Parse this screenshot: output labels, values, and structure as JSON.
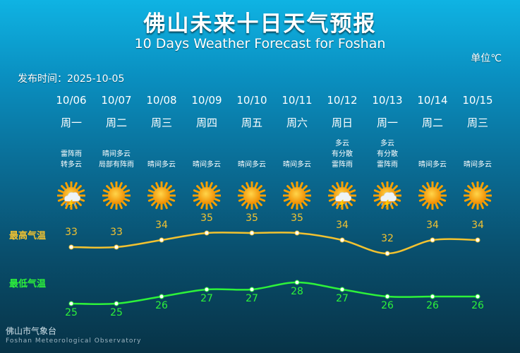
{
  "header": {
    "title": "佛山未来十日天气预报",
    "subtitle": "10 Days Weather Forecast for Foshan",
    "unit": "单位℃",
    "publish": "发布时间：2025-10-05"
  },
  "labels": {
    "high": "最高气温",
    "low": "最低气温"
  },
  "colors": {
    "high": "#f2c230",
    "low": "#2df23a"
  },
  "days": [
    {
      "date": "10/06",
      "weekday": "周一",
      "desc": [
        "雷阵雨",
        "转多云"
      ],
      "icon": "thunderstorm-sun-icon",
      "high": 33,
      "low": 25
    },
    {
      "date": "10/07",
      "weekday": "周二",
      "desc": [
        "晴间多云",
        "局部有阵雨"
      ],
      "icon": "sun-icon",
      "high": 33,
      "low": 25
    },
    {
      "date": "10/08",
      "weekday": "周三",
      "desc": [
        "晴间多云"
      ],
      "icon": "sun-icon",
      "high": 34,
      "low": 26
    },
    {
      "date": "10/09",
      "weekday": "周四",
      "desc": [
        "晴间多云"
      ],
      "icon": "sun-icon",
      "high": 35,
      "low": 27
    },
    {
      "date": "10/10",
      "weekday": "周五",
      "desc": [
        "晴间多云"
      ],
      "icon": "sun-icon",
      "high": 35,
      "low": 27
    },
    {
      "date": "10/11",
      "weekday": "周六",
      "desc": [
        "晴间多云"
      ],
      "icon": "sun-icon",
      "high": 35,
      "low": 28
    },
    {
      "date": "10/12",
      "weekday": "周日",
      "desc": [
        "多云",
        "有分散",
        "雷阵雨"
      ],
      "icon": "thunderstorm-sun-icon",
      "high": 34,
      "low": 27
    },
    {
      "date": "10/13",
      "weekday": "周一",
      "desc": [
        "多云",
        "有分散",
        "雷阵雨"
      ],
      "icon": "thunderstorm-sun-icon",
      "high": 32,
      "low": 26
    },
    {
      "date": "10/14",
      "weekday": "周二",
      "desc": [
        "晴间多云"
      ],
      "icon": "sun-icon",
      "high": 34,
      "low": 26
    },
    {
      "date": "10/15",
      "weekday": "周三",
      "desc": [
        "晴间多云"
      ],
      "icon": "sun-icon",
      "high": 34,
      "low": 26
    }
  ],
  "footer": {
    "cn": "佛山市气象台",
    "en": "Foshan Meteorological Observatory"
  }
}
